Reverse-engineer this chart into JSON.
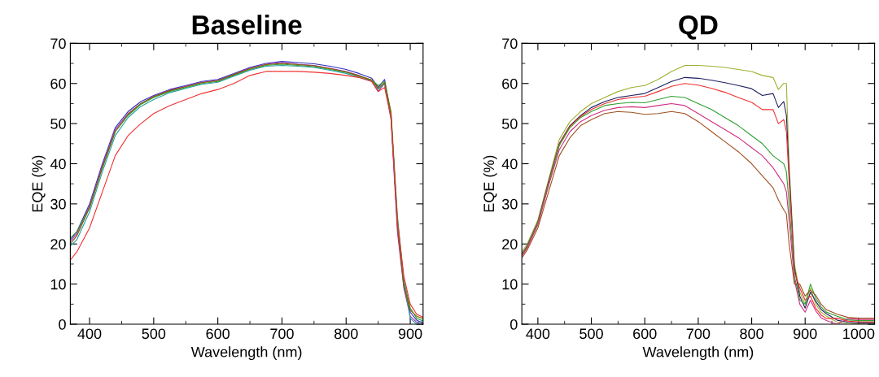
{
  "chart_data": [
    {
      "type": "line",
      "title": "Baseline",
      "xlabel": "Wavelength (nm)",
      "ylabel": "EQE (%)",
      "xlim": [
        370,
        920
      ],
      "ylim": [
        0,
        70
      ],
      "xticks": [
        400,
        500,
        600,
        700,
        800,
        900
      ],
      "yticks": [
        0,
        10,
        20,
        30,
        40,
        50,
        60,
        70
      ],
      "grid": false,
      "marker": "none",
      "line_style": "solid",
      "x": [
        370,
        380,
        400,
        420,
        440,
        460,
        480,
        500,
        525,
        550,
        575,
        600,
        625,
        650,
        675,
        700,
        725,
        750,
        775,
        800,
        820,
        840,
        850,
        860,
        870,
        880,
        890,
        900,
        910,
        920
      ],
      "series": [
        {
          "color": "#3030c0",
          "values": [
            21,
            23,
            30,
            40,
            49,
            53,
            55.5,
            57,
            58.5,
            59.5,
            60.5,
            61,
            62.5,
            64,
            65,
            65.5,
            65.2,
            64.9,
            64.3,
            63.5,
            62.5,
            61.3,
            59,
            61,
            52,
            25,
            10,
            3,
            1,
            0.2
          ]
        },
        {
          "color": "#b030b0",
          "values": [
            20.5,
            22.5,
            29.5,
            39.5,
            48.5,
            52.5,
            55,
            56.8,
            58.3,
            59.3,
            60.3,
            60.8,
            62.3,
            63.8,
            64.8,
            65.2,
            64.8,
            64.5,
            63.8,
            63,
            62,
            60.5,
            58,
            60,
            51,
            23,
            9,
            2,
            0.5,
            0.5
          ]
        },
        {
          "color": "#30a030",
          "values": [
            21.5,
            23,
            29,
            39,
            48,
            52,
            54.8,
            56.5,
            58,
            59,
            60,
            60.5,
            62,
            63.5,
            64.5,
            64.8,
            64.5,
            64.2,
            63.5,
            62.8,
            61.8,
            60.8,
            59.5,
            60.5,
            53,
            27,
            11,
            4,
            1.5,
            0.8
          ]
        },
        {
          "color": "#20a0a0",
          "values": [
            19.5,
            21,
            28,
            38,
            47,
            51.5,
            54.3,
            56,
            57.7,
            58.8,
            59.8,
            60.3,
            61.8,
            63.3,
            64.3,
            64.5,
            64.3,
            64,
            63.3,
            62.5,
            61.5,
            60.5,
            58.5,
            60,
            52,
            26,
            10.5,
            1.5,
            0,
            1.1
          ]
        },
        {
          "color": "#806000",
          "values": [
            20,
            22,
            29,
            39,
            48,
            52.3,
            55,
            56.7,
            58.2,
            59.2,
            60.2,
            60.7,
            62.2,
            63.7,
            64.7,
            65,
            64.7,
            64.4,
            63.7,
            62.9,
            61.9,
            60.9,
            58.8,
            60.2,
            52.5,
            24.5,
            9.5,
            3.5,
            2,
            1.4
          ]
        },
        {
          "color": "#f03030",
          "values": [
            16,
            18,
            24,
            33,
            42,
            47,
            50,
            52.5,
            54.5,
            56,
            57.5,
            58.5,
            60,
            62,
            63,
            63,
            63,
            62.8,
            62.5,
            62,
            61.5,
            60.5,
            58,
            59,
            51.5,
            25.5,
            12,
            5,
            2.5,
            1.7
          ]
        }
      ]
    },
    {
      "type": "line",
      "title": "QD",
      "xlabel": "Wavelength (nm)",
      "ylabel": "EQE (%)",
      "xlim": [
        370,
        1030
      ],
      "ylim": [
        0,
        70
      ],
      "xticks": [
        400,
        500,
        600,
        700,
        800,
        900,
        1000
      ],
      "yticks": [
        0,
        10,
        20,
        30,
        40,
        50,
        60,
        70
      ],
      "grid": false,
      "marker": "none",
      "line_style": "solid",
      "x": [
        370,
        380,
        400,
        420,
        440,
        460,
        480,
        500,
        525,
        550,
        575,
        600,
        625,
        650,
        675,
        700,
        725,
        750,
        775,
        800,
        820,
        840,
        850,
        860,
        865,
        870,
        880,
        890,
        900,
        910,
        920,
        930,
        940,
        960,
        980,
        1000,
        1030
      ],
      "series": [
        {
          "color": "#a0b030",
          "values": [
            18,
            20,
            26,
            36,
            46,
            50.5,
            53,
            55,
            56.5,
            58,
            59,
            59.5,
            61,
            63,
            64.5,
            64.5,
            64.3,
            64,
            63.5,
            63,
            62,
            61.5,
            58.5,
            60,
            60,
            40,
            15,
            8,
            5,
            9,
            5,
            3,
            2,
            0.5,
            0.2,
            0,
            0
          ]
        },
        {
          "color": "#202060",
          "values": [
            17.5,
            19.5,
            25.5,
            35.5,
            45,
            49.5,
            52,
            54,
            55.5,
            56.5,
            57,
            57.5,
            59,
            60.5,
            61.5,
            61.3,
            60.8,
            60.2,
            59.5,
            58.7,
            57,
            57.5,
            54,
            55.5,
            52,
            38,
            14,
            7,
            4,
            8,
            5.7,
            3.7,
            2.6,
            1,
            0.5,
            0.3,
            0.3
          ]
        },
        {
          "color": "#f03030",
          "values": [
            17.3,
            19.3,
            25.3,
            35.3,
            44.8,
            49.3,
            51.8,
            53.5,
            55,
            56,
            56.5,
            56.8,
            58,
            59.3,
            60,
            59.6,
            58.8,
            57.8,
            56.5,
            55.3,
            53.5,
            53.5,
            50,
            51,
            48,
            36,
            13,
            9,
            6,
            7,
            4,
            2.3,
            1.4,
            1.5,
            0.8,
            0.6,
            0.6
          ]
        },
        {
          "color": "#30a030",
          "values": [
            17.2,
            19.2,
            25.2,
            35,
            44.5,
            49,
            51.5,
            53,
            54.5,
            55,
            55.3,
            55.2,
            56,
            56.8,
            56.5,
            55,
            53.5,
            51.5,
            49.5,
            47,
            45,
            42,
            41,
            40,
            38,
            30,
            12,
            6,
            5,
            10,
            6.5,
            4.3,
            3,
            2,
            1.1,
            0.9,
            0.9
          ]
        },
        {
          "color": "#d03080",
          "values": [
            17,
            19,
            24.8,
            34.5,
            43.5,
            48,
            50.5,
            52,
            53.3,
            54,
            54.2,
            54,
            54.5,
            55,
            54.5,
            52.5,
            50.5,
            48.5,
            46.5,
            44,
            42,
            39,
            37,
            35,
            33,
            26,
            11,
            5,
            3,
            6,
            3.3,
            1.6,
            0.9,
            0,
            1.4,
            1.2,
            1.2
          ]
        },
        {
          "color": "#a05020",
          "values": [
            16.5,
            18.5,
            24,
            33,
            42,
            46.5,
            49.5,
            51,
            52.5,
            53,
            52.8,
            52.3,
            52.5,
            53,
            52.5,
            50.5,
            48,
            45.5,
            43,
            40,
            37,
            34,
            31,
            28.5,
            27.5,
            20,
            10,
            10,
            7,
            8.5,
            7.2,
            5,
            3.6,
            2.5,
            1.7,
            1.5,
            1.5
          ]
        }
      ]
    }
  ]
}
